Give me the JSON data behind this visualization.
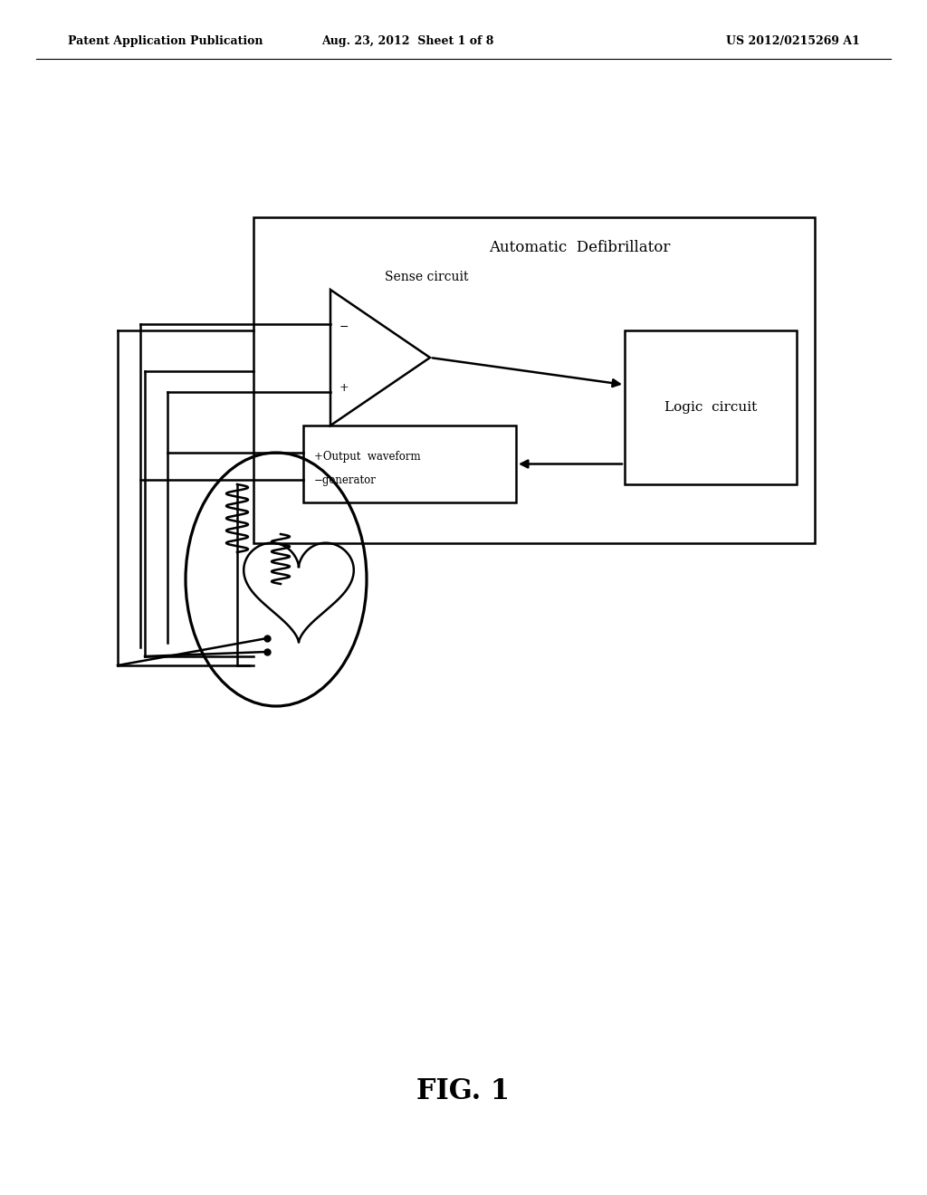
{
  "background_color": "#ffffff",
  "header_left": "Patent Application Publication",
  "header_center": "Aug. 23, 2012  Sheet 1 of 8",
  "header_right": "US 2012/0215269 A1",
  "fig_label": "FIG. 1",
  "title_defibrillator": "Automatic  Defibrillator",
  "label_sense": "Sense circuit",
  "label_logic": "Logic  circuit",
  "line_color": "#000000",
  "line_width": 1.8
}
